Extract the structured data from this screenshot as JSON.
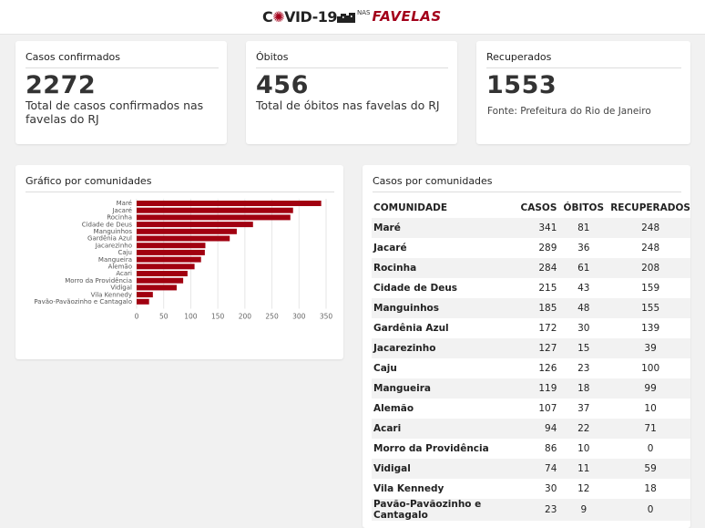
{
  "header": {
    "logo_covid": "C",
    "logo_virus": "✺",
    "logo_rest": "VID-19",
    "logo_nas": "NAS",
    "logo_favelas": "FAVELAS"
  },
  "cards": {
    "confirmed": {
      "title": "Casos confirmados",
      "value": "2272",
      "desc": "Total de casos confirmados nas favelas do RJ"
    },
    "deaths": {
      "title": "Óbitos",
      "value": "456",
      "desc": "Total de óbitos nas favelas do RJ"
    },
    "recovered": {
      "title": "Recuperados",
      "value": "1553",
      "source": "Fonte: Prefeitura do Rio de Janeiro"
    }
  },
  "chart_panel": {
    "title": "Gráfico por comunidades"
  },
  "chart_data": {
    "type": "bar",
    "orientation": "horizontal",
    "categories": [
      "Maré",
      "Jacaré",
      "Rocinha",
      "Cidade de Deus",
      "Manguinhos",
      "Gardênia Azul",
      "Jacarezinho",
      "Caju",
      "Mangueira",
      "Alemão",
      "Acari",
      "Morro da Providência",
      "Vidigal",
      "Vila Kennedy",
      "Pavão-Pavãozinho e Cantagalo"
    ],
    "values": [
      341,
      289,
      284,
      215,
      185,
      172,
      127,
      126,
      119,
      107,
      94,
      86,
      74,
      30,
      23
    ],
    "xlim": [
      0,
      350
    ],
    "xticks": [
      0,
      50,
      100,
      150,
      200,
      250,
      300,
      350
    ],
    "grid": true,
    "color": "#a10010"
  },
  "table_panel": {
    "title": "Casos por comunidades",
    "columns": {
      "name": "COMUNIDADE",
      "cases": "CASOS",
      "deaths": "ÓBITOS",
      "recovered": "RECUPERADOS"
    },
    "rows": [
      {
        "name": "Maré",
        "cases": "341",
        "deaths": "81",
        "recovered": "248"
      },
      {
        "name": "Jacaré",
        "cases": "289",
        "deaths": "36",
        "recovered": "248"
      },
      {
        "name": "Rocinha",
        "cases": "284",
        "deaths": "61",
        "recovered": "208"
      },
      {
        "name": "Cidade de Deus",
        "cases": "215",
        "deaths": "43",
        "recovered": "159"
      },
      {
        "name": "Manguinhos",
        "cases": "185",
        "deaths": "48",
        "recovered": "155"
      },
      {
        "name": "Gardênia Azul",
        "cases": "172",
        "deaths": "30",
        "recovered": "139"
      },
      {
        "name": "Jacarezinho",
        "cases": "127",
        "deaths": "15",
        "recovered": "39"
      },
      {
        "name": "Caju",
        "cases": "126",
        "deaths": "23",
        "recovered": "100"
      },
      {
        "name": "Mangueira",
        "cases": "119",
        "deaths": "18",
        "recovered": "99"
      },
      {
        "name": "Alemão",
        "cases": "107",
        "deaths": "37",
        "recovered": "10"
      },
      {
        "name": "Acari",
        "cases": "94",
        "deaths": "22",
        "recovered": "71"
      },
      {
        "name": "Morro da Providência",
        "cases": "86",
        "deaths": "10",
        "recovered": "0"
      },
      {
        "name": "Vidigal",
        "cases": "74",
        "deaths": "11",
        "recovered": "59"
      },
      {
        "name": "Vila Kennedy",
        "cases": "30",
        "deaths": "12",
        "recovered": "18"
      },
      {
        "name": "Pavão-Pavãozinho e Cantagalo",
        "cases": "23",
        "deaths": "9",
        "recovered": "0"
      }
    ]
  }
}
